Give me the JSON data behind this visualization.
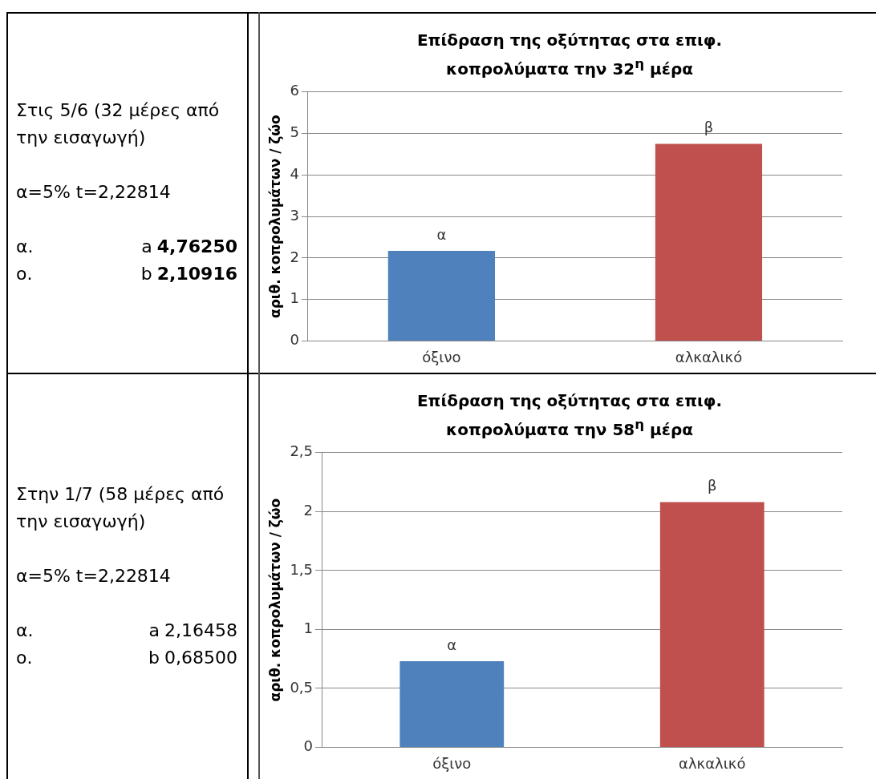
{
  "chart_data": [
    {
      "type": "other",
      "annotations": [
        "Στις 5/6 (32 μέρες από την εισαγωγή)",
        "α=5%   t=2,22814",
        "α.",
        "a",
        "4,76250",
        "ο.",
        "b",
        "2,10916"
      ]
    },
    {
      "type": "bar",
      "title": "Επίδραση της οξύτητας στα επιφ. κοπρολύματα την 32$^{η}$ μέρα",
      "ylabel": "αριθ. κοπρολυμάτων / ζώο",
      "categories": [
        "όξινο",
        "αλκαλικό"
      ],
      "values": [
        2.17,
        4.75
      ],
      "colors": [
        "#4f81bd",
        "#c0504d"
      ],
      "value_labels": [
        "α",
        "β"
      ],
      "ylim": [
        0,
        6
      ],
      "yticks": [
        0,
        1,
        2,
        3,
        4,
        5,
        6
      ],
      "grid": "y"
    },
    {
      "type": "other",
      "annotations": [
        "Στην 1/7 (58 μέρες από την εισαγωγή)",
        "α=5%   t=2,22814",
        "α.",
        "a",
        "2,16458",
        "ο.",
        "b",
        "0,68500"
      ]
    },
    {
      "type": "bar",
      "title": "Επίδραση της οξύτητας στα επιφ. κοπρολύματα την 58$^{η}$ μέρα",
      "ylabel": "αριθ. κοπρολυμάτων / ζώο",
      "categories": [
        "όξινο",
        "αλκαλικό"
      ],
      "values": [
        0.73,
        2.08
      ],
      "colors": [
        "#4f81bd",
        "#c0504d"
      ],
      "value_labels": [
        "α",
        "β"
      ],
      "ylim": [
        0,
        2.5
      ],
      "yticks": [
        0,
        {
          "value": 0.5,
          "label": "0,5"
        },
        1,
        {
          "value": 1.5,
          "label": "1,5"
        },
        2,
        {
          "value": 2.5,
          "label": "2,5"
        }
      ],
      "grid": "y"
    }
  ]
}
